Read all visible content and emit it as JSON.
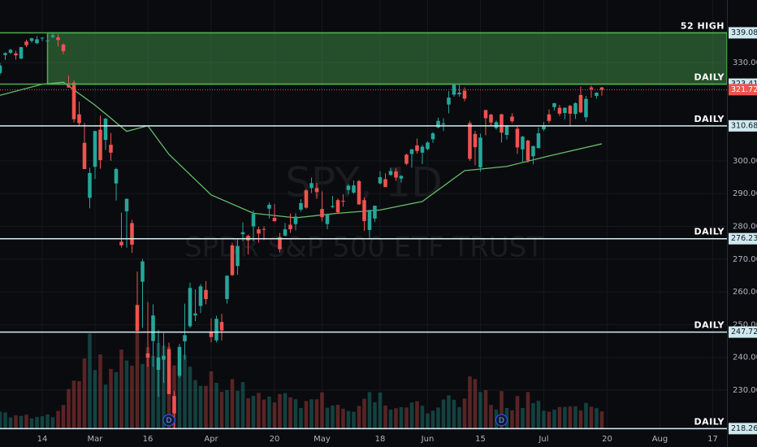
{
  "chart_data": {
    "type": "candlestick",
    "title": "SPY, 1D",
    "subtitle": "SPDR S&P 500 ETF TRUST",
    "up_color": "#26a69a",
    "down_color": "#ef5350",
    "grid": true,
    "xlim": [
      0,
      137.7
    ],
    "ylim": [
      218.1,
      349.1
    ],
    "yticks": [
      {
        "value": 330,
        "label": "330.00"
      },
      {
        "value": 300,
        "label": "300.00"
      },
      {
        "value": 290,
        "label": "290.00"
      },
      {
        "value": 280,
        "label": "280.00"
      },
      {
        "value": 270,
        "label": "270.00"
      },
      {
        "value": 260,
        "label": "260.00"
      },
      {
        "value": 250,
        "label": "250.00"
      },
      {
        "value": 240,
        "label": "240.00"
      },
      {
        "value": 230,
        "label": "230.00"
      }
    ],
    "xticks": [
      {
        "value": 8,
        "label": "14"
      },
      {
        "value": 18,
        "label": "Mar"
      },
      {
        "value": 28,
        "label": "16"
      },
      {
        "value": 40,
        "label": "Apr"
      },
      {
        "value": 52,
        "label": "20"
      },
      {
        "value": 61,
        "label": "May"
      },
      {
        "value": 72,
        "label": "18"
      },
      {
        "value": 81,
        "label": "Jun"
      },
      {
        "value": 91,
        "label": "15"
      },
      {
        "value": 103,
        "label": "Jul"
      },
      {
        "value": 115,
        "label": "20"
      },
      {
        "value": 125,
        "label": "Aug"
      },
      {
        "value": 135,
        "label": "17"
      }
    ],
    "candles": [
      [
        326.8,
        329.9,
        326.2,
        329.1
      ],
      [
        332.3,
        333.1,
        330.8,
        332.9
      ],
      [
        333.0,
        334.2,
        332.6,
        333.9
      ],
      [
        332.8,
        333.6,
        330.9,
        332.2
      ],
      [
        331.2,
        334.8,
        331.1,
        334.7
      ],
      [
        336.4,
        337.0,
        334.7,
        335.3
      ],
      [
        336.6,
        337.6,
        336.1,
        337.4
      ],
      [
        335.9,
        338.1,
        335.6,
        337.1
      ],
      [
        337.5,
        337.7,
        336.5,
        337.6
      ],
      [
        336.5,
        337.5,
        335.4,
        336.7
      ],
      [
        337.8,
        339.08,
        337.4,
        338.3
      ],
      [
        337.7,
        338.6,
        334.9,
        336.9
      ],
      [
        335.5,
        335.8,
        332.6,
        333.5
      ],
      [
        323.1,
        326.0,
        322.3,
        322.4
      ],
      [
        323.9,
        324.6,
        311.7,
        312.7
      ],
      [
        314.2,
        318.1,
        310.6,
        311.5
      ],
      [
        305.5,
        311.6,
        297.5,
        297.5
      ],
      [
        288.7,
        297.9,
        285.5,
        296.3
      ],
      [
        298.2,
        309.2,
        294.5,
        309.1
      ],
      [
        309.5,
        313.8,
        297.6,
        300.2
      ],
      [
        306.4,
        313.1,
        303.3,
        312.9
      ],
      [
        304.9,
        308.5,
        300.0,
        302.5
      ],
      [
        293.1,
        297.9,
        287.9,
        297.5
      ],
      [
        275.3,
        284.2,
        273.5,
        274.2
      ],
      [
        284.6,
        288.5,
        273.5,
        288.4
      ],
      [
        281.0,
        282.0,
        271.9,
        274.4
      ],
      [
        256.0,
        266.2,
        247.7,
        248.1
      ],
      [
        263.1,
        270.0,
        249.0,
        269.3
      ],
      [
        241.2,
        256.9,
        237.1,
        239.9
      ],
      [
        245.0,
        256.2,
        237.1,
        252.8
      ],
      [
        236.2,
        248.4,
        228.0,
        240.0
      ],
      [
        239.3,
        247.4,
        232.2,
        240.5
      ],
      [
        242.5,
        244.5,
        228.8,
        228.8
      ],
      [
        228.2,
        229.7,
        218.26,
        222.9
      ],
      [
        234.4,
        244.1,
        233.8,
        243.2
      ],
      [
        244.9,
        256.4,
        239.3,
        246.8
      ],
      [
        249.5,
        262.8,
        249.0,
        261.2
      ],
      [
        252.8,
        260.8,
        251.1,
        253.4
      ],
      [
        255.7,
        262.4,
        253.5,
        261.7
      ],
      [
        260.6,
        263.3,
        256.2,
        257.8
      ],
      [
        247.9,
        251.9,
        244.6,
        246.2
      ],
      [
        245.2,
        252.7,
        244.6,
        251.8
      ],
      [
        250.8,
        253.3,
        245.2,
        248.2
      ],
      [
        257.8,
        265.1,
        256.4,
        264.9
      ],
      [
        274.2,
        275.0,
        264.9,
        265.1
      ],
      [
        267.9,
        276.0,
        265.2,
        274.0
      ],
      [
        277.6,
        281.2,
        275.5,
        278.2
      ],
      [
        277.1,
        277.5,
        271.4,
        275.7
      ],
      [
        280.0,
        284.9,
        275.5,
        283.8
      ],
      [
        279.1,
        279.9,
        275.0,
        277.8
      ],
      [
        279.2,
        280.0,
        275.8,
        279.1
      ],
      [
        285.4,
        287.3,
        282.4,
        286.6
      ],
      [
        282.6,
        286.8,
        281.4,
        281.6
      ],
      [
        276.7,
        278.0,
        272.0,
        273.0
      ],
      [
        277.2,
        281.0,
        276.9,
        279.1
      ],
      [
        280.5,
        283.9,
        278.0,
        279.1
      ],
      [
        280.7,
        284.0,
        278.8,
        283.0
      ],
      [
        285.1,
        288.3,
        284.5,
        287.1
      ],
      [
        291.0,
        291.4,
        285.4,
        285.7
      ],
      [
        291.7,
        294.9,
        290.2,
        293.2
      ],
      [
        291.7,
        293.3,
        288.4,
        290.5
      ],
      [
        285.3,
        290.7,
        281.5,
        282.8
      ],
      [
        280.7,
        283.9,
        279.1,
        283.6
      ],
      [
        285.9,
        289.3,
        285.5,
        286.2
      ],
      [
        288.0,
        288.5,
        283.8,
        284.3
      ],
      [
        287.8,
        289.8,
        286.0,
        287.7
      ],
      [
        291.1,
        292.9,
        289.8,
        292.4
      ],
      [
        290.3,
        294.0,
        289.9,
        292.5
      ],
      [
        293.8,
        294.2,
        286.6,
        286.7
      ],
      [
        288.0,
        288.8,
        278.6,
        281.6
      ],
      [
        278.9,
        285.1,
        276.0,
        285.0
      ],
      [
        282.4,
        286.3,
        281.3,
        286.3
      ],
      [
        293.1,
        296.8,
        292.8,
        295.0
      ],
      [
        294.4,
        296.2,
        291.9,
        292.0
      ],
      [
        295.7,
        297.9,
        295.4,
        296.9
      ],
      [
        296.8,
        297.7,
        293.9,
        294.9
      ],
      [
        294.6,
        295.6,
        293.4,
        295.4
      ],
      [
        301.9,
        302.2,
        298.7,
        299.1
      ],
      [
        302.1,
        303.6,
        297.9,
        303.5
      ],
      [
        304.7,
        306.8,
        302.2,
        303.0
      ],
      [
        302.5,
        304.9,
        299.0,
        304.3
      ],
      [
        303.6,
        306.0,
        303.2,
        305.6
      ],
      [
        306.6,
        308.8,
        305.5,
        308.4
      ],
      [
        310.2,
        313.2,
        309.9,
        312.2
      ],
      [
        311.1,
        313.0,
        309.1,
        311.4
      ],
      [
        317.2,
        321.3,
        314.5,
        319.3
      ],
      [
        320.2,
        323.41,
        319.6,
        323.2
      ],
      [
        320.3,
        323.3,
        319.6,
        320.8
      ],
      [
        321.4,
        322.4,
        318.2,
        319.0
      ],
      [
        311.5,
        312.2,
        300.0,
        300.6
      ],
      [
        308.2,
        309.1,
        298.6,
        304.2
      ],
      [
        298.0,
        308.3,
        296.7,
        307.1
      ],
      [
        315.5,
        315.6,
        307.8,
        313.0
      ],
      [
        314.1,
        314.4,
        310.9,
        311.7
      ],
      [
        310.0,
        312.3,
        309.5,
        311.8
      ],
      [
        314.2,
        314.4,
        305.6,
        308.6
      ],
      [
        307.9,
        310.8,
        306.5,
        310.6
      ],
      [
        313.5,
        314.5,
        311.6,
        312.1
      ],
      [
        309.8,
        310.5,
        302.1,
        304.1
      ],
      [
        303.5,
        307.6,
        299.7,
        307.4
      ],
      [
        306.2,
        306.4,
        299.4,
        300.1
      ],
      [
        301.4,
        304.6,
        298.9,
        304.5
      ],
      [
        303.9,
        310.2,
        303.8,
        308.4
      ],
      [
        309.6,
        311.9,
        309.1,
        310.5
      ],
      [
        314.2,
        315.7,
        311.5,
        312.2
      ],
      [
        316.4,
        317.7,
        315.4,
        317.6
      ],
      [
        316.2,
        317.1,
        313.7,
        314.4
      ],
      [
        314.6,
        316.3,
        312.7,
        316.2
      ],
      [
        316.8,
        317.1,
        310.7,
        314.4
      ],
      [
        314.3,
        317.9,
        312.8,
        317.6
      ],
      [
        320.1,
        322.7,
        314.5,
        314.8
      ],
      [
        313.3,
        319.8,
        312.0,
        318.9
      ],
      [
        322.4,
        323.0,
        319.3,
        321.9
      ],
      [
        319.8,
        320.9,
        319.0,
        320.8
      ],
      [
        322.4,
        322.6,
        319.9,
        321.7
      ]
    ],
    "volume": [
      70,
      67,
      47,
      55,
      53,
      58,
      43,
      49,
      52,
      59,
      48,
      73,
      97,
      161,
      195,
      193,
      284,
      384,
      237,
      300,
      179,
      242,
      229,
      320,
      276,
      255,
      392,
      262,
      329,
      294,
      346,
      335,
      331,
      256,
      230,
      299,
      251,
      197,
      174,
      174,
      232,
      186,
      150,
      157,
      201,
      154,
      189,
      124,
      134,
      146,
      119,
      131,
      107,
      141,
      145,
      128,
      120,
      85,
      113,
      120,
      120,
      148,
      86,
      95,
      98,
      82,
      73,
      70,
      93,
      122,
      149,
      108,
      147,
      95,
      78,
      84,
      88,
      87,
      107,
      112,
      94,
      63,
      74,
      87,
      119,
      136,
      118,
      88,
      123,
      212,
      201,
      149,
      157,
      97,
      79,
      153,
      85,
      76,
      133,
      85,
      149,
      105,
      114,
      74,
      70,
      78,
      89,
      89,
      91,
      92,
      75,
      105,
      90,
      84,
      71
    ],
    "ma": {
      "color": "#66bb6a",
      "x": [
        0,
        8,
        12,
        18,
        24,
        28,
        32,
        40,
        48,
        56,
        64,
        72,
        80,
        88,
        96,
        104,
        114
      ],
      "values": [
        320.0,
        323.4,
        324.0,
        317.0,
        309.0,
        310.7,
        302.0,
        289.6,
        284.0,
        282.6,
        284.0,
        285.0,
        287.6,
        297.0,
        298.3,
        301.5,
        305.2
      ]
    },
    "zone": {
      "start": 9,
      "low": 323.41,
      "high": 339.08,
      "color": "#4caf50"
    },
    "levels": [
      {
        "value": 339.08,
        "text": "52 HIGH",
        "color": "#4caf50"
      },
      {
        "value": 323.41,
        "text": "DAILY",
        "color": "#4caf50"
      },
      {
        "value": 310.68,
        "text": "DAILY",
        "color": "#d7eef2"
      },
      {
        "value": 276.23,
        "text": "DAILY",
        "color": "#d7eef2"
      },
      {
        "value": 247.72,
        "text": "DAILY",
        "color": "#d7eef2"
      },
      {
        "value": 218.26,
        "text": "DAILY",
        "color": "#d7eef2"
      }
    ],
    "last": {
      "value": 321.72,
      "color": "#ef5350"
    },
    "events": [
      {
        "index": 32,
        "label": "D"
      },
      {
        "index": 95,
        "label": "D"
      }
    ]
  }
}
